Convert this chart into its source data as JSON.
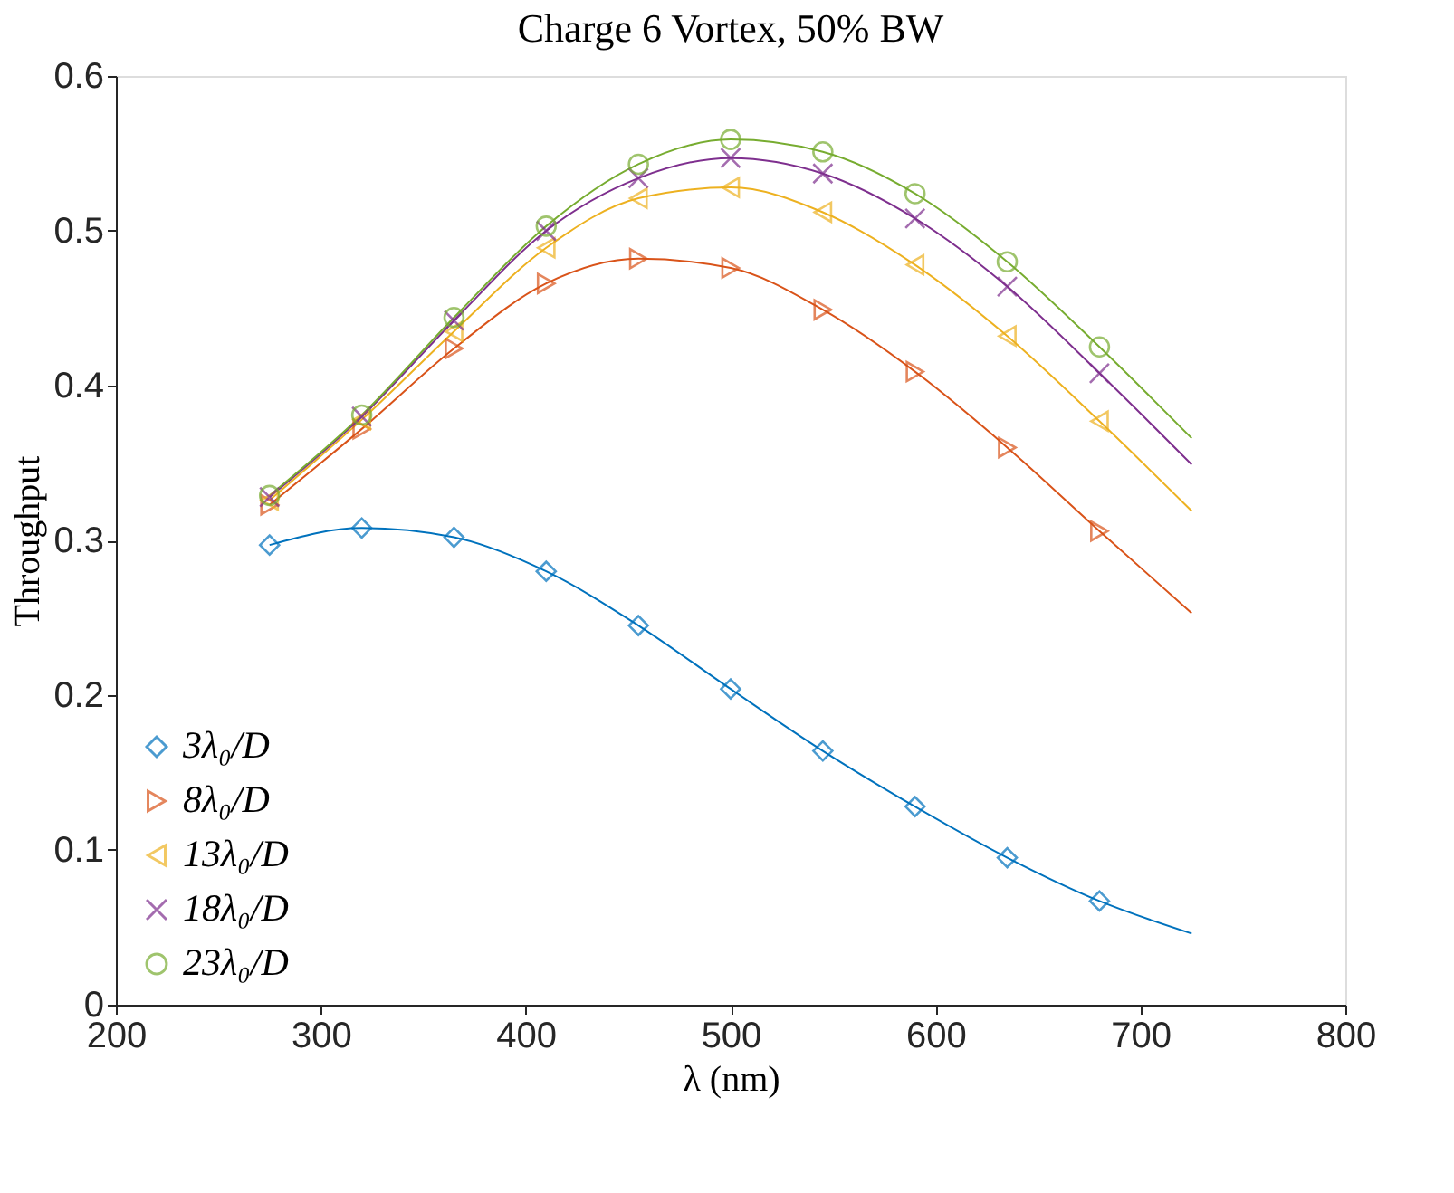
{
  "chart_data": {
    "type": "line",
    "title": "Charge 6 Vortex, 50% BW",
    "xlabel": "λ (nm)",
    "ylabel": "Throughput",
    "xlim": [
      200,
      800
    ],
    "xticks": [
      200,
      300,
      400,
      500,
      600,
      700,
      800
    ],
    "ylim": [
      0,
      0.6
    ],
    "yticks": [
      0,
      0.1,
      0.2,
      0.3,
      0.4,
      0.5,
      0.6
    ],
    "grid": false,
    "legend": "bottom left",
    "line_style": "solid",
    "series": [
      {
        "color": "#0072bd",
        "x": [
          275,
          320,
          365,
          410,
          455,
          500,
          545,
          590,
          635,
          680,
          725
        ],
        "values": [
          0.297,
          0.308,
          0.302,
          0.28,
          0.245,
          0.204,
          0.164,
          0.128,
          0.095,
          0.067,
          0.046
        ]
      },
      {
        "color": "#d95319",
        "x": [
          275,
          320,
          365,
          410,
          455,
          500,
          545,
          590,
          635,
          680,
          725
        ],
        "values": [
          0.323,
          0.372,
          0.424,
          0.466,
          0.482,
          0.476,
          0.449,
          0.409,
          0.36,
          0.306,
          0.253
        ]
      },
      {
        "color": "#edb120",
        "x": [
          275,
          320,
          365,
          410,
          455,
          500,
          545,
          590,
          635,
          680,
          725
        ],
        "values": [
          0.326,
          0.378,
          0.435,
          0.489,
          0.521,
          0.528,
          0.512,
          0.478,
          0.432,
          0.377,
          0.319
        ]
      },
      {
        "color": "#7e2f8e",
        "x": [
          275,
          320,
          365,
          410,
          455,
          500,
          545,
          590,
          635,
          680,
          725
        ],
        "values": [
          0.328,
          0.38,
          0.442,
          0.5,
          0.534,
          0.547,
          0.537,
          0.508,
          0.464,
          0.408,
          0.349
        ]
      },
      {
        "color": "#77ac30",
        "x": [
          275,
          320,
          365,
          410,
          455,
          500,
          545,
          590,
          635,
          680,
          725
        ],
        "values": [
          0.329,
          0.381,
          0.444,
          0.503,
          0.543,
          0.559,
          0.551,
          0.524,
          0.48,
          0.425,
          0.366
        ]
      },
      {
        "type": "scatter",
        "name": "3λ₀/D",
        "marker": "diamond",
        "color": "#0072bd",
        "x": [
          275,
          320,
          365,
          410,
          455,
          500,
          545,
          590,
          635,
          680
        ],
        "values": [
          0.297,
          0.308,
          0.302,
          0.28,
          0.245,
          0.204,
          0.164,
          0.128,
          0.095,
          0.067
        ]
      },
      {
        "type": "scatter",
        "name": "8λ₀/D",
        "marker": "triangle-right",
        "color": "#d95319",
        "x": [
          275,
          320,
          365,
          410,
          455,
          500,
          545,
          590,
          635,
          680
        ],
        "values": [
          0.323,
          0.372,
          0.424,
          0.466,
          0.482,
          0.476,
          0.449,
          0.409,
          0.36,
          0.306
        ]
      },
      {
        "type": "scatter",
        "name": "13λ₀/D",
        "marker": "triangle-left",
        "color": "#edb120",
        "x": [
          275,
          320,
          365,
          410,
          455,
          500,
          545,
          590,
          635,
          680
        ],
        "values": [
          0.326,
          0.378,
          0.435,
          0.489,
          0.521,
          0.528,
          0.512,
          0.478,
          0.432,
          0.377
        ]
      },
      {
        "type": "scatter",
        "name": "18λ₀/D",
        "marker": "cross",
        "color": "#7e2f8e",
        "x": [
          275,
          320,
          365,
          410,
          455,
          500,
          545,
          590,
          635,
          680
        ],
        "values": [
          0.328,
          0.38,
          0.442,
          0.5,
          0.534,
          0.547,
          0.537,
          0.508,
          0.464,
          0.408
        ]
      },
      {
        "type": "scatter",
        "name": "23λ₀/D",
        "marker": "circle",
        "color": "#77ac30",
        "x": [
          275,
          320,
          365,
          410,
          455,
          500,
          545,
          590,
          635,
          680
        ],
        "values": [
          0.329,
          0.381,
          0.444,
          0.503,
          0.543,
          0.559,
          0.551,
          0.524,
          0.48,
          0.425
        ]
      }
    ]
  }
}
